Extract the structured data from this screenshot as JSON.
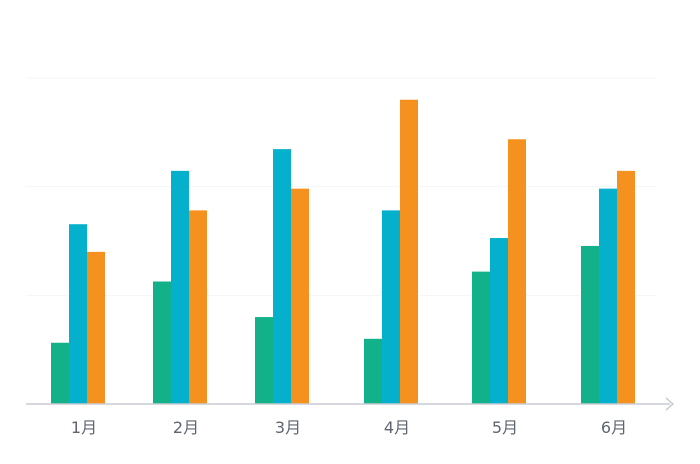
{
  "chart_data": {
    "type": "bar",
    "categories": [
      "1月",
      "2月",
      "3月",
      "4月",
      "5月",
      "6月"
    ],
    "series": [
      {
        "values": [
          62,
          124,
          88,
          66,
          134,
          160
        ],
        "color": "#12b18a"
      },
      {
        "values": [
          182,
          236,
          258,
          196,
          168,
          218
        ],
        "color": "#04b0cc"
      },
      {
        "values": [
          154,
          196,
          218,
          308,
          268,
          236
        ],
        "color": "#f5921f"
      }
    ],
    "title": "",
    "xlabel": "",
    "ylabel": "",
    "ylim": [
      0,
      330
    ],
    "gridlines": [
      110,
      220,
      330
    ],
    "grid": true,
    "legend": "none",
    "axis_color": "#c9ccd2",
    "grid_color": "#f3f4f6"
  }
}
